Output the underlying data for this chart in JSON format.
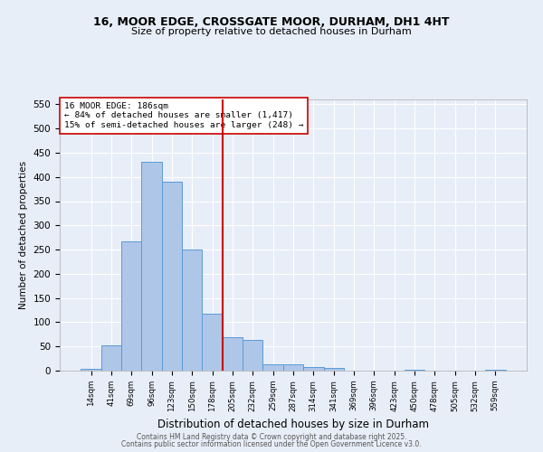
{
  "title1": "16, MOOR EDGE, CROSSGATE MOOR, DURHAM, DH1 4HT",
  "title2": "Size of property relative to detached houses in Durham",
  "xlabel": "Distribution of detached houses by size in Durham",
  "ylabel": "Number of detached properties",
  "bin_labels": [
    "14sqm",
    "41sqm",
    "69sqm",
    "96sqm",
    "123sqm",
    "150sqm",
    "178sqm",
    "205sqm",
    "232sqm",
    "259sqm",
    "287sqm",
    "314sqm",
    "341sqm",
    "369sqm",
    "396sqm",
    "423sqm",
    "450sqm",
    "478sqm",
    "505sqm",
    "532sqm",
    "559sqm"
  ],
  "bar_heights": [
    3,
    52,
    267,
    432,
    390,
    251,
    118,
    70,
    63,
    13,
    13,
    8,
    5,
    0,
    0,
    0,
    2,
    0,
    0,
    0,
    2
  ],
  "bar_color": "#aec6e8",
  "bar_edge_color": "#5b9bd5",
  "vline_x_idx": 6,
  "vline_color": "#cc0000",
  "ylim": [
    0,
    560
  ],
  "yticks": [
    0,
    50,
    100,
    150,
    200,
    250,
    300,
    350,
    400,
    450,
    500,
    550
  ],
  "annotation_title": "16 MOOR EDGE: 186sqm",
  "annotation_line1": "← 84% of detached houses are smaller (1,417)",
  "annotation_line2": "15% of semi-detached houses are larger (248) →",
  "annotation_box_color": "#ffffff",
  "annotation_box_edge": "#cc0000",
  "footer1": "Contains HM Land Registry data © Crown copyright and database right 2025.",
  "footer2": "Contains public sector information licensed under the Open Government Licence v3.0.",
  "bg_color": "#e8eef8",
  "plot_bg_color": "#e8eef8",
  "grid_color": "#ffffff"
}
